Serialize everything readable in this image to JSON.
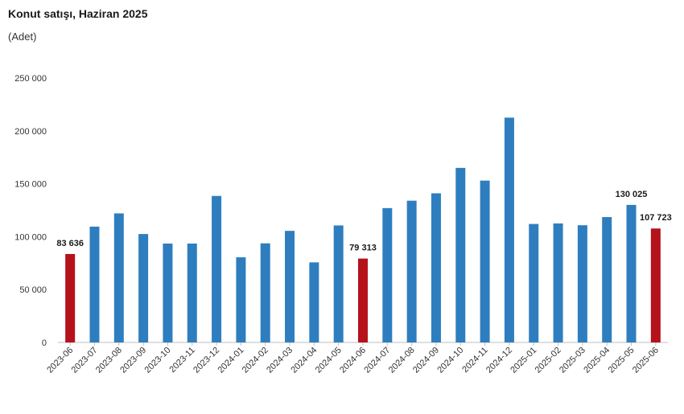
{
  "title": "Konut satışı, Haziran 2025",
  "subtitle": "(Adet)",
  "chart_data": {
    "type": "bar",
    "title": "Konut satışı, Haziran 2025",
    "ylabel": "(Adet)",
    "xlabel": "",
    "ylim": [
      0,
      250000
    ],
    "yticks": [
      0,
      50000,
      100000,
      150000,
      200000,
      250000
    ],
    "ytick_labels": [
      "0",
      "50 000",
      "100 000",
      "150 000",
      "200 000",
      "250 000"
    ],
    "grid": false,
    "legend": "none",
    "categories": [
      "2023-06",
      "2023-07",
      "2023-08",
      "2023-09",
      "2023-10",
      "2023-11",
      "2023-12",
      "2024-01",
      "2024-02",
      "2024-03",
      "2024-04",
      "2024-05",
      "2024-06",
      "2024-07",
      "2024-08",
      "2024-09",
      "2024-10",
      "2024-11",
      "2024-12",
      "2025-01",
      "2025-02",
      "2025-03",
      "2025-04",
      "2025-05",
      "2025-06"
    ],
    "values": [
      83636,
      109500,
      122000,
      102500,
      93500,
      93500,
      138500,
      80500,
      93700,
      105500,
      75700,
      110600,
      79313,
      127000,
      134000,
      141000,
      165000,
      153000,
      212500,
      112000,
      112500,
      110800,
      118500,
      130025,
      107723
    ],
    "highlight_indices": [
      0,
      12,
      24
    ],
    "data_labels": [
      {
        "index": 0,
        "text": "83 636"
      },
      {
        "index": 12,
        "text": "79 313"
      },
      {
        "index": 23,
        "text": "130 025"
      },
      {
        "index": 24,
        "text": "107 723"
      }
    ],
    "colors": {
      "bar": "#2e7ebf",
      "highlight": "#b5121b",
      "axis": "#bfbfbf",
      "text": "#333333"
    }
  }
}
